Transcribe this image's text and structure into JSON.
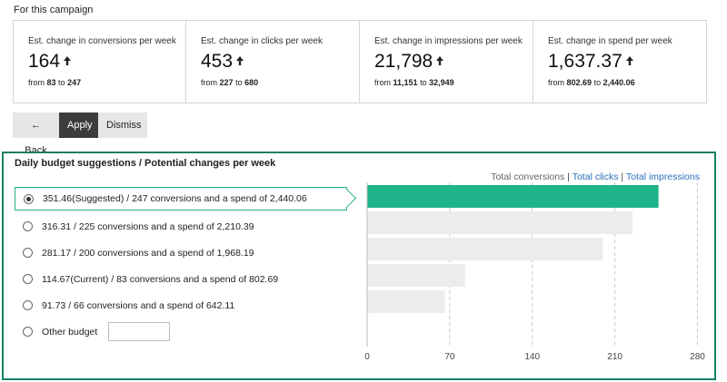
{
  "heading": "For this campaign",
  "cards": [
    {
      "label": "Est. change in conversions per week",
      "value": "164",
      "from": "83",
      "to": "247"
    },
    {
      "label": "Est. change in clicks per week",
      "value": "453",
      "from": "227",
      "to": "680"
    },
    {
      "label": "Est. change in impressions per week",
      "value": "21,798",
      "from": "11,151",
      "to": "32,949"
    },
    {
      "label": "Est. change in spend per week",
      "value": "1,637.37",
      "from": "802.69",
      "to": "2,440.06"
    }
  ],
  "range_from_word": "from",
  "range_to_word": "to",
  "buttons": {
    "back": "← Back",
    "apply": "Apply",
    "dismiss": "Dismiss"
  },
  "panel": {
    "title": "Daily budget suggestions / Potential changes per week",
    "metric_links": {
      "conversions": "Total conversions",
      "clicks": "Total clicks",
      "impressions": "Total impressions",
      "separator": "|"
    },
    "options": [
      {
        "label": "351.46(Suggested) / 247 conversions and a spend of 2,440.06",
        "selected": true
      },
      {
        "label": "316.31 / 225 conversions and a spend of 2,210.39",
        "selected": false
      },
      {
        "label": "281.17 / 200 conversions and a spend of 1,968.19",
        "selected": false
      },
      {
        "label": "114.67(Current) / 83 conversions and a spend of 802.69",
        "selected": false
      },
      {
        "label": "91.73 / 66 conversions and a spend of 642.11",
        "selected": false
      }
    ],
    "other_budget_label": "Other budget",
    "other_budget_value": ""
  },
  "colors": {
    "accent": "#1a7f64",
    "bar_selected": "#1fb489",
    "bar_default": "#ececec"
  },
  "icons": {
    "up_arrow": "up-arrow-icon"
  },
  "chart_data": {
    "type": "bar",
    "orientation": "horizontal",
    "categories": [
      "351.46",
      "316.31",
      "281.17",
      "114.67",
      "91.73"
    ],
    "values": [
      247,
      225,
      200,
      83,
      66
    ],
    "xlim": [
      0,
      280
    ],
    "xticks": [
      "0",
      "70",
      "140",
      "210",
      "280"
    ],
    "xtick_values": [
      0,
      70,
      140,
      210,
      280
    ],
    "grid": "vertical-dashed"
  }
}
